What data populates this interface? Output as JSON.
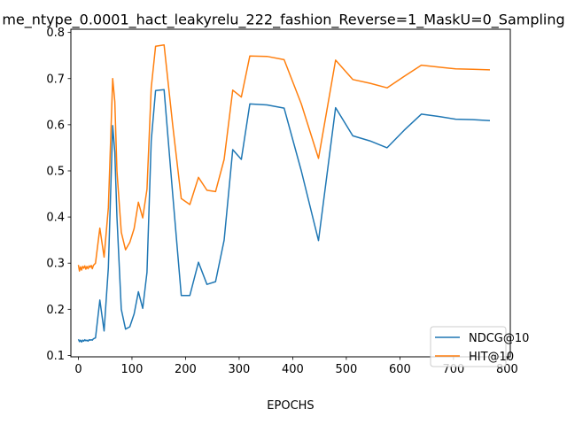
{
  "chart_data": {
    "type": "line",
    "title": "me_ntype_0.0001_hact_leakyrelu_222_fashion_Reverse=1_MaskU=0_Sampling",
    "xlabel": "EPOCHS",
    "ylabel": "",
    "xlim": [
      -14,
      806
    ],
    "ylim": [
      0.097,
      0.807
    ],
    "xticks": [
      0,
      100,
      200,
      300,
      400,
      500,
      600,
      700,
      800
    ],
    "yticks": [
      0.1,
      0.2,
      0.3,
      0.4,
      0.5,
      0.6,
      0.7,
      0.8
    ],
    "grid": false,
    "legend": "lower-right",
    "series": [
      {
        "name": "NDCG@10",
        "color": "#1f77b4",
        "x": [
          0,
          2,
          4,
          6,
          8,
          10,
          12,
          14,
          16,
          18,
          20,
          22,
          24,
          26,
          28,
          32,
          40,
          48,
          56,
          64,
          68,
          72,
          80,
          88,
          96,
          104,
          112,
          120,
          128,
          136,
          144,
          160,
          176,
          192,
          208,
          224,
          240,
          256,
          272,
          288,
          304,
          320,
          352,
          384,
          416,
          448,
          480,
          512,
          544,
          576,
          608,
          640,
          672,
          704,
          736,
          768
        ],
        "y": [
          0.135,
          0.13,
          0.133,
          0.129,
          0.133,
          0.131,
          0.134,
          0.132,
          0.133,
          0.131,
          0.134,
          0.133,
          0.134,
          0.133,
          0.136,
          0.138,
          0.22,
          0.153,
          0.29,
          0.598,
          0.54,
          0.4,
          0.2,
          0.157,
          0.162,
          0.19,
          0.238,
          0.202,
          0.28,
          0.565,
          0.674,
          0.676,
          0.45,
          0.23,
          0.23,
          0.302,
          0.254,
          0.26,
          0.35,
          0.546,
          0.525,
          0.645,
          0.643,
          0.636,
          0.5,
          0.349,
          0.637,
          0.576,
          0.565,
          0.55,
          0.588,
          0.623,
          0.618,
          0.612,
          0.611,
          0.609
        ]
      },
      {
        "name": "HIT@10",
        "color": "#ff7f0e",
        "x": [
          0,
          2,
          4,
          6,
          8,
          10,
          12,
          14,
          16,
          18,
          20,
          22,
          24,
          26,
          28,
          32,
          40,
          48,
          56,
          64,
          68,
          72,
          80,
          88,
          96,
          104,
          112,
          120,
          128,
          136,
          144,
          160,
          176,
          192,
          208,
          224,
          240,
          256,
          272,
          288,
          304,
          320,
          352,
          384,
          416,
          448,
          480,
          512,
          544,
          576,
          608,
          640,
          672,
          704,
          736,
          768
        ],
        "y": [
          0.296,
          0.283,
          0.292,
          0.285,
          0.293,
          0.289,
          0.294,
          0.287,
          0.293,
          0.288,
          0.294,
          0.291,
          0.295,
          0.288,
          0.295,
          0.3,
          0.376,
          0.313,
          0.42,
          0.7,
          0.65,
          0.5,
          0.367,
          0.329,
          0.345,
          0.375,
          0.432,
          0.398,
          0.46,
          0.68,
          0.77,
          0.773,
          0.6,
          0.44,
          0.427,
          0.486,
          0.458,
          0.455,
          0.525,
          0.675,
          0.66,
          0.749,
          0.748,
          0.741,
          0.645,
          0.527,
          0.74,
          0.698,
          0.69,
          0.68,
          0.705,
          0.729,
          0.725,
          0.721,
          0.72,
          0.719
        ]
      }
    ]
  }
}
